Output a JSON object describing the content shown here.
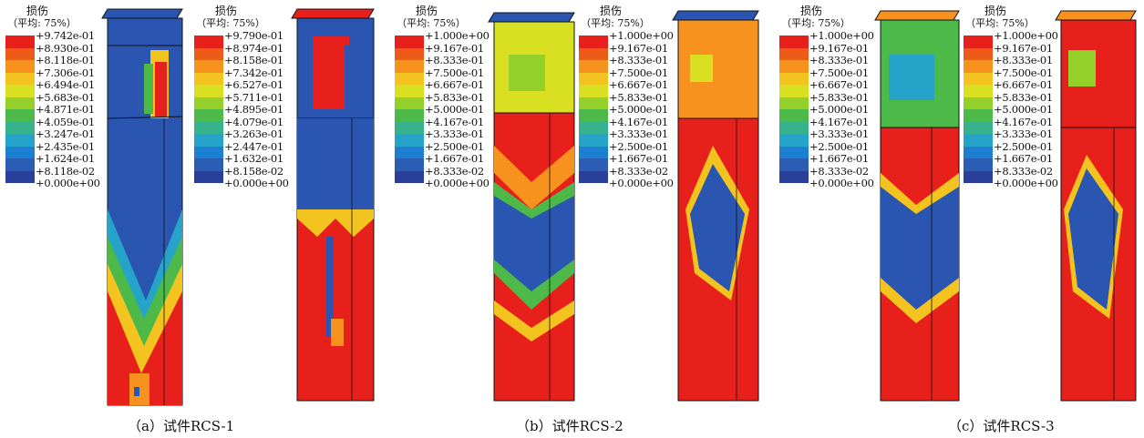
{
  "legend_title": "损伤",
  "legend_subtitle": "（平均: 75%）",
  "legend_colors": [
    "#e8201c",
    "#ee5a18",
    "#f7921e",
    "#f3c41f",
    "#d8e021",
    "#93d12a",
    "#4cb948",
    "#36b28d",
    "#25a3c8",
    "#1d7fd1",
    "#2a5db3",
    "#2a3f9a"
  ],
  "panels": [
    {
      "caption": "（a）试件RCS-1",
      "legends": [
        {
          "labels": [
            "+9.742e-01",
            "+8.930e-01",
            "+8.118e-01",
            "+7.306e-01",
            "+6.494e-01",
            "+5.683e-01",
            "+4.871e-01",
            "+4.059e-01",
            "+3.247e-01",
            "+2.435e-01",
            "+1.624e-01",
            "+8.118e-02",
            "+0.000e+00"
          ]
        },
        {
          "labels": [
            "+9.790e-01",
            "+8.974e-01",
            "+8.158e-01",
            "+7.342e-01",
            "+6.527e-01",
            "+5.711e-01",
            "+4.895e-01",
            "+4.079e-01",
            "+3.263e-01",
            "+2.447e-01",
            "+1.632e-01",
            "+8.158e-02",
            "+0.000e+00"
          ]
        }
      ]
    },
    {
      "caption": "（b）试件RCS-2",
      "legends": [
        {
          "labels": [
            "+1.000e+00",
            "+9.167e-01",
            "+8.333e-01",
            "+7.500e-01",
            "+6.667e-01",
            "+5.833e-01",
            "+5.000e-01",
            "+4.167e-01",
            "+3.333e-01",
            "+2.500e-01",
            "+1.667e-01",
            "+8.333e-02",
            "+0.000e+00"
          ]
        },
        {
          "labels": [
            "+1.000e+00",
            "+9.167e-01",
            "+8.333e-01",
            "+7.500e-01",
            "+6.667e-01",
            "+5.833e-01",
            "+5.000e-01",
            "+4.167e-01",
            "+3.333e-01",
            "+2.500e-01",
            "+1.667e-01",
            "+8.333e-02",
            "+0.000e+00"
          ]
        }
      ]
    },
    {
      "caption": "（c）试件RCS-3",
      "legends": [
        {
          "labels": [
            "+1.000e+00",
            "+9.167e-01",
            "+8.333e-01",
            "+7.500e-01",
            "+6.667e-01",
            "+5.833e-01",
            "+5.000e-01",
            "+4.167e-01",
            "+3.333e-01",
            "+2.500e-01",
            "+1.667e-01",
            "+8.333e-02",
            "+0.000e+00"
          ]
        },
        {
          "labels": [
            "+1.000e+00",
            "+9.167e-01",
            "+8.333e-01",
            "+7.500e-01",
            "+6.667e-01",
            "+5.833e-01",
            "+5.000e-01",
            "+4.167e-01",
            "+3.333e-01",
            "+2.500e-01",
            "+1.667e-01",
            "+8.333e-02",
            "+0.000e+00"
          ]
        }
      ]
    }
  ]
}
